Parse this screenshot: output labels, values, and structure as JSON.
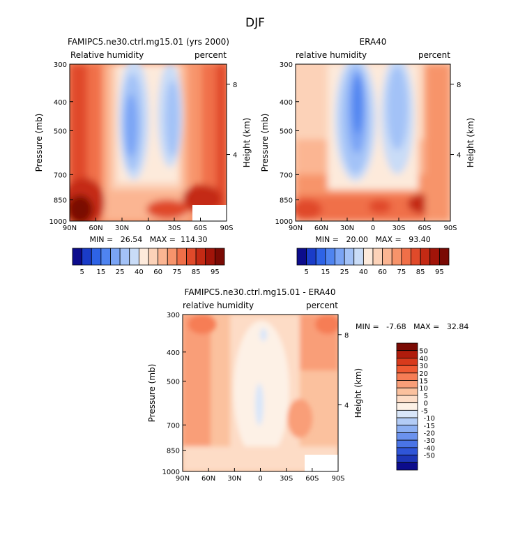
{
  "page_title": "DJF",
  "chart_data": [
    {
      "type": "heatmap",
      "id": "model",
      "title": "FAMIPC5.ne30.ctrl.mg15.01 (yrs 2000)",
      "left_label": "Relative humidity",
      "right_label": "percent",
      "xlabel": "",
      "ylabel": "Pressure (mb)",
      "y2label": "Height (km)",
      "x_tick_labels": [
        "90N",
        "60N",
        "30N",
        "0",
        "30S",
        "60S",
        "90S"
      ],
      "x_values": [
        90,
        60,
        30,
        0,
        -30,
        -60,
        -90
      ],
      "y_tick_labels": [
        "300",
        "400",
        "500",
        "700",
        "850",
        "1000"
      ],
      "y_values": [
        300,
        400,
        500,
        700,
        850,
        1000
      ],
      "y2_tick_labels": [
        "8",
        "4"
      ],
      "y2_values_mb": [
        350,
        600
      ],
      "stats_text": "MIN =   26.54   MAX =  114.30",
      "min": 26.54,
      "max": 114.3,
      "colorbar": {
        "orientation": "horizontal",
        "colors": [
          "#0c0c8c",
          "#1a3cc8",
          "#2e63e6",
          "#4f84f0",
          "#7aa4f5",
          "#a3c2f7",
          "#c9dcf7",
          "#fdeadb",
          "#fcd2b8",
          "#fbb592",
          "#f7946b",
          "#f06f48",
          "#e04a2a",
          "#c42a14",
          "#a11409",
          "#7a0a04"
        ],
        "labels": [
          "5",
          "15",
          "25",
          "40",
          "60",
          "75",
          "85",
          "95"
        ]
      },
      "missing_region": "60S-90S near surface"
    },
    {
      "type": "heatmap",
      "id": "obs",
      "title": "ERA40",
      "left_label": "relative humidity",
      "right_label": "percent",
      "ylabel": "Pressure (mb)",
      "y2label": "Height (km)",
      "x_tick_labels": [
        "90N",
        "60N",
        "30N",
        "0",
        "30S",
        "60S",
        "90S"
      ],
      "x_values": [
        90,
        60,
        30,
        0,
        -30,
        -60,
        -90
      ],
      "y_tick_labels": [
        "300",
        "400",
        "500",
        "700",
        "850",
        "1000"
      ],
      "y_values": [
        300,
        400,
        500,
        700,
        850,
        1000
      ],
      "y2_tick_labels": [
        "8",
        "4"
      ],
      "y2_values_mb": [
        350,
        600
      ],
      "stats_text": "MIN =   20.00   MAX =   93.40",
      "min": 20.0,
      "max": 93.4,
      "colorbar": {
        "orientation": "horizontal",
        "colors": [
          "#0c0c8c",
          "#1a3cc8",
          "#2e63e6",
          "#4f84f0",
          "#7aa4f5",
          "#a3c2f7",
          "#c9dcf7",
          "#fdeadb",
          "#fcd2b8",
          "#fbb592",
          "#f7946b",
          "#f06f48",
          "#e04a2a",
          "#c42a14",
          "#a11409",
          "#7a0a04"
        ],
        "labels": [
          "5",
          "15",
          "25",
          "40",
          "60",
          "75",
          "85",
          "95"
        ]
      }
    },
    {
      "type": "heatmap",
      "id": "diff",
      "title": "FAMIPC5.ne30.ctrl.mg15.01 - ERA40",
      "left_label": "relative humidity",
      "right_label": "percent",
      "ylabel": "Pressure (mb)",
      "y2label": "Height (km)",
      "x_tick_labels": [
        "90N",
        "60N",
        "30N",
        "0",
        "30S",
        "60S",
        "90S"
      ],
      "x_values": [
        90,
        60,
        30,
        0,
        -30,
        -60,
        -90
      ],
      "y_tick_labels": [
        "300",
        "400",
        "500",
        "700",
        "850",
        "1000"
      ],
      "y_values": [
        300,
        400,
        500,
        700,
        850,
        1000
      ],
      "y2_tick_labels": [
        "8",
        "4"
      ],
      "y2_values_mb": [
        350,
        600
      ],
      "stats_text": "MIN =   -7.68   MAX =   32.84",
      "min": -7.68,
      "max": 32.84,
      "colorbar": {
        "orientation": "vertical",
        "colors": [
          "#7a0a04",
          "#b01c0c",
          "#d83a1c",
          "#ef5a33",
          "#f67d55",
          "#f99e78",
          "#fbc19e",
          "#fddcc6",
          "#fdf1e6",
          "#d9e6f9",
          "#b3ccf6",
          "#8caff2",
          "#6b92ee",
          "#4a74e6",
          "#2f55d8",
          "#1d36b8",
          "#0c0c8c"
        ],
        "labels": [
          "50",
          "40",
          "30",
          "20",
          "15",
          "10",
          "5",
          "0",
          "-5",
          "-10",
          "-15",
          "-20",
          "-30",
          "-40",
          "-50"
        ]
      },
      "missing_region": "60S-90S near surface"
    }
  ]
}
